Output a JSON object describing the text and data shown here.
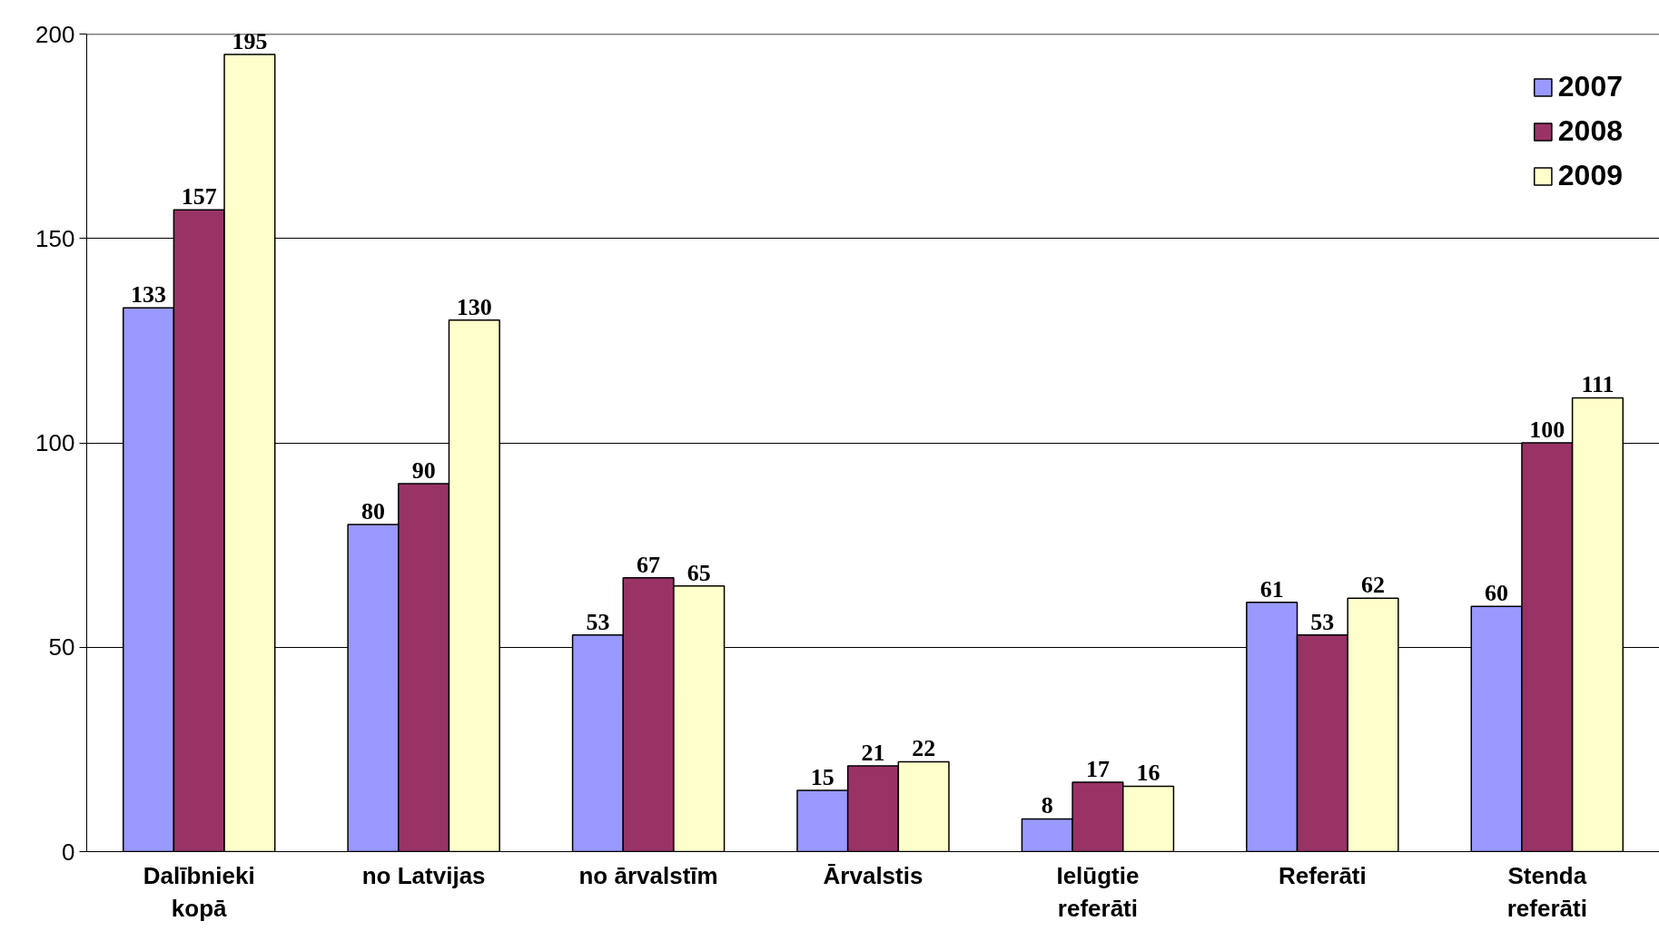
{
  "chart_data": {
    "type": "bar",
    "categories": [
      "Dalībnieki\nkopā",
      "no Latvijas",
      "no ārvalstīm",
      "Ārvalstis",
      "Ielūgtie\nreferāti",
      "Referāti",
      "Stenda\nreferāti"
    ],
    "series": [
      {
        "name": "2007",
        "color": "#9999ff",
        "values": [
          133,
          80,
          53,
          15,
          8,
          61,
          60
        ]
      },
      {
        "name": "2008",
        "color": "#993366",
        "values": [
          157,
          90,
          67,
          21,
          17,
          53,
          100
        ]
      },
      {
        "name": "2009",
        "color": "#ffffcc",
        "values": [
          195,
          130,
          65,
          22,
          16,
          62,
          111
        ]
      }
    ],
    "ylim": [
      0,
      200
    ],
    "yticks": [
      0,
      50,
      100,
      150,
      200
    ],
    "grid": "y",
    "legend": "top right",
    "data_labels": true
  }
}
